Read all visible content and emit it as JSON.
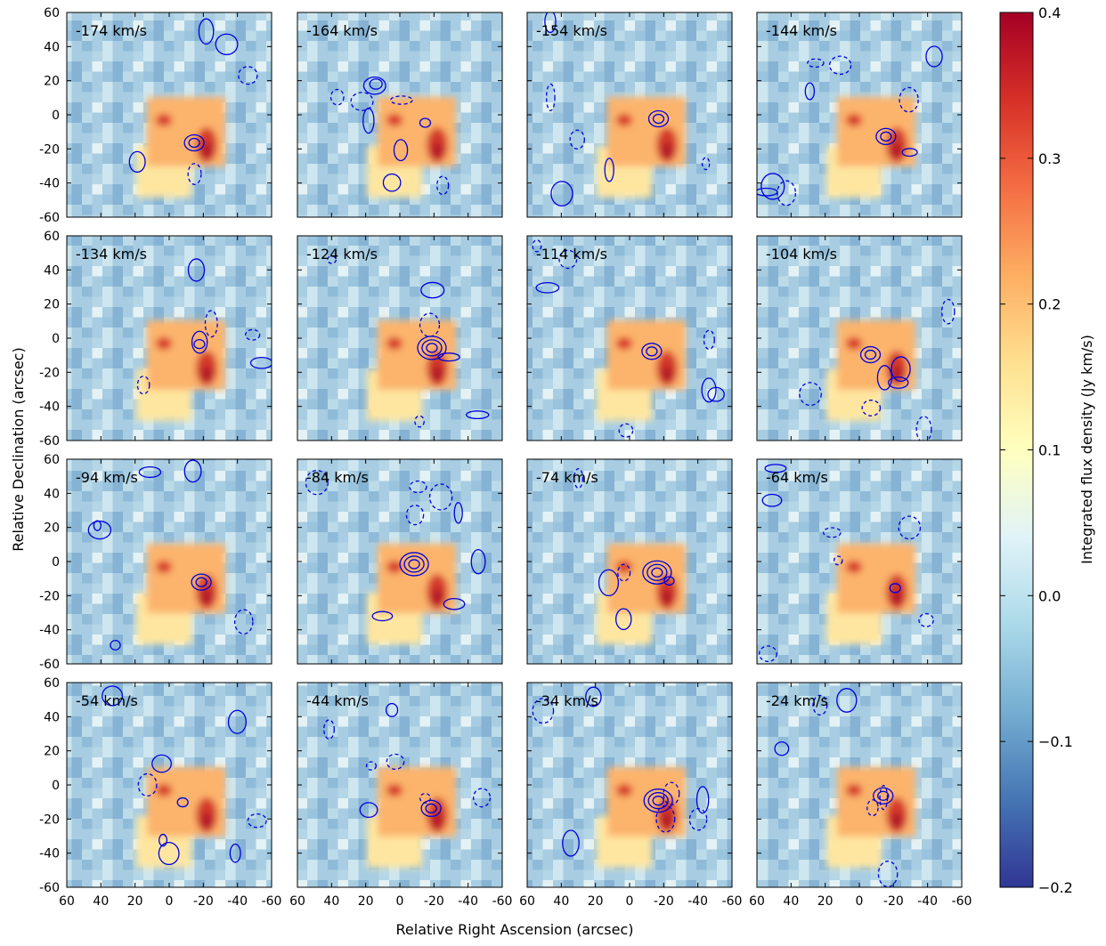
{
  "chart_data": {
    "type": "channel-maps",
    "xlabel": "Relative Right Ascension (arcsec)",
    "ylabel": "Relative Declination (arcsec)",
    "panels": [
      "-174 km/s",
      "-164 km/s",
      "-154 km/s",
      "-144 km/s",
      "-134 km/s",
      "-124 km/s",
      "-114 km/s",
      "-104 km/s",
      "-94 km/s",
      "-84 km/s",
      "-74 km/s",
      "-64 km/s",
      "-54 km/s",
      "-44 km/s",
      "-34 km/s",
      "-24 km/s"
    ],
    "xlim": [
      60,
      -60
    ],
    "xticks": [
      60,
      40,
      20,
      0,
      -20,
      -40,
      -60
    ],
    "ylim": [
      -60,
      60
    ],
    "yticks": [
      -60,
      -40,
      -20,
      0,
      20,
      40,
      60
    ],
    "contour_color": "#0000dd",
    "colorbar": {
      "label": "Integrated flux density (Jy km/s)",
      "clim": [
        -0.2,
        0.4
      ],
      "ticks": [
        {
          "value": -0.2,
          "label": "−0.2"
        },
        {
          "value": -0.1,
          "label": "−0.1"
        },
        {
          "value": 0,
          "label": "0.0"
        },
        0.1,
        0.2,
        0.3,
        0.4
      ],
      "colors": [
        "#313695",
        "#4575b4",
        "#74add1",
        "#abd9e9",
        "#e0f3f8",
        "#ffffbf",
        "#fee090",
        "#fdae61",
        "#f46d43",
        "#d73027",
        "#a50026"
      ]
    }
  }
}
